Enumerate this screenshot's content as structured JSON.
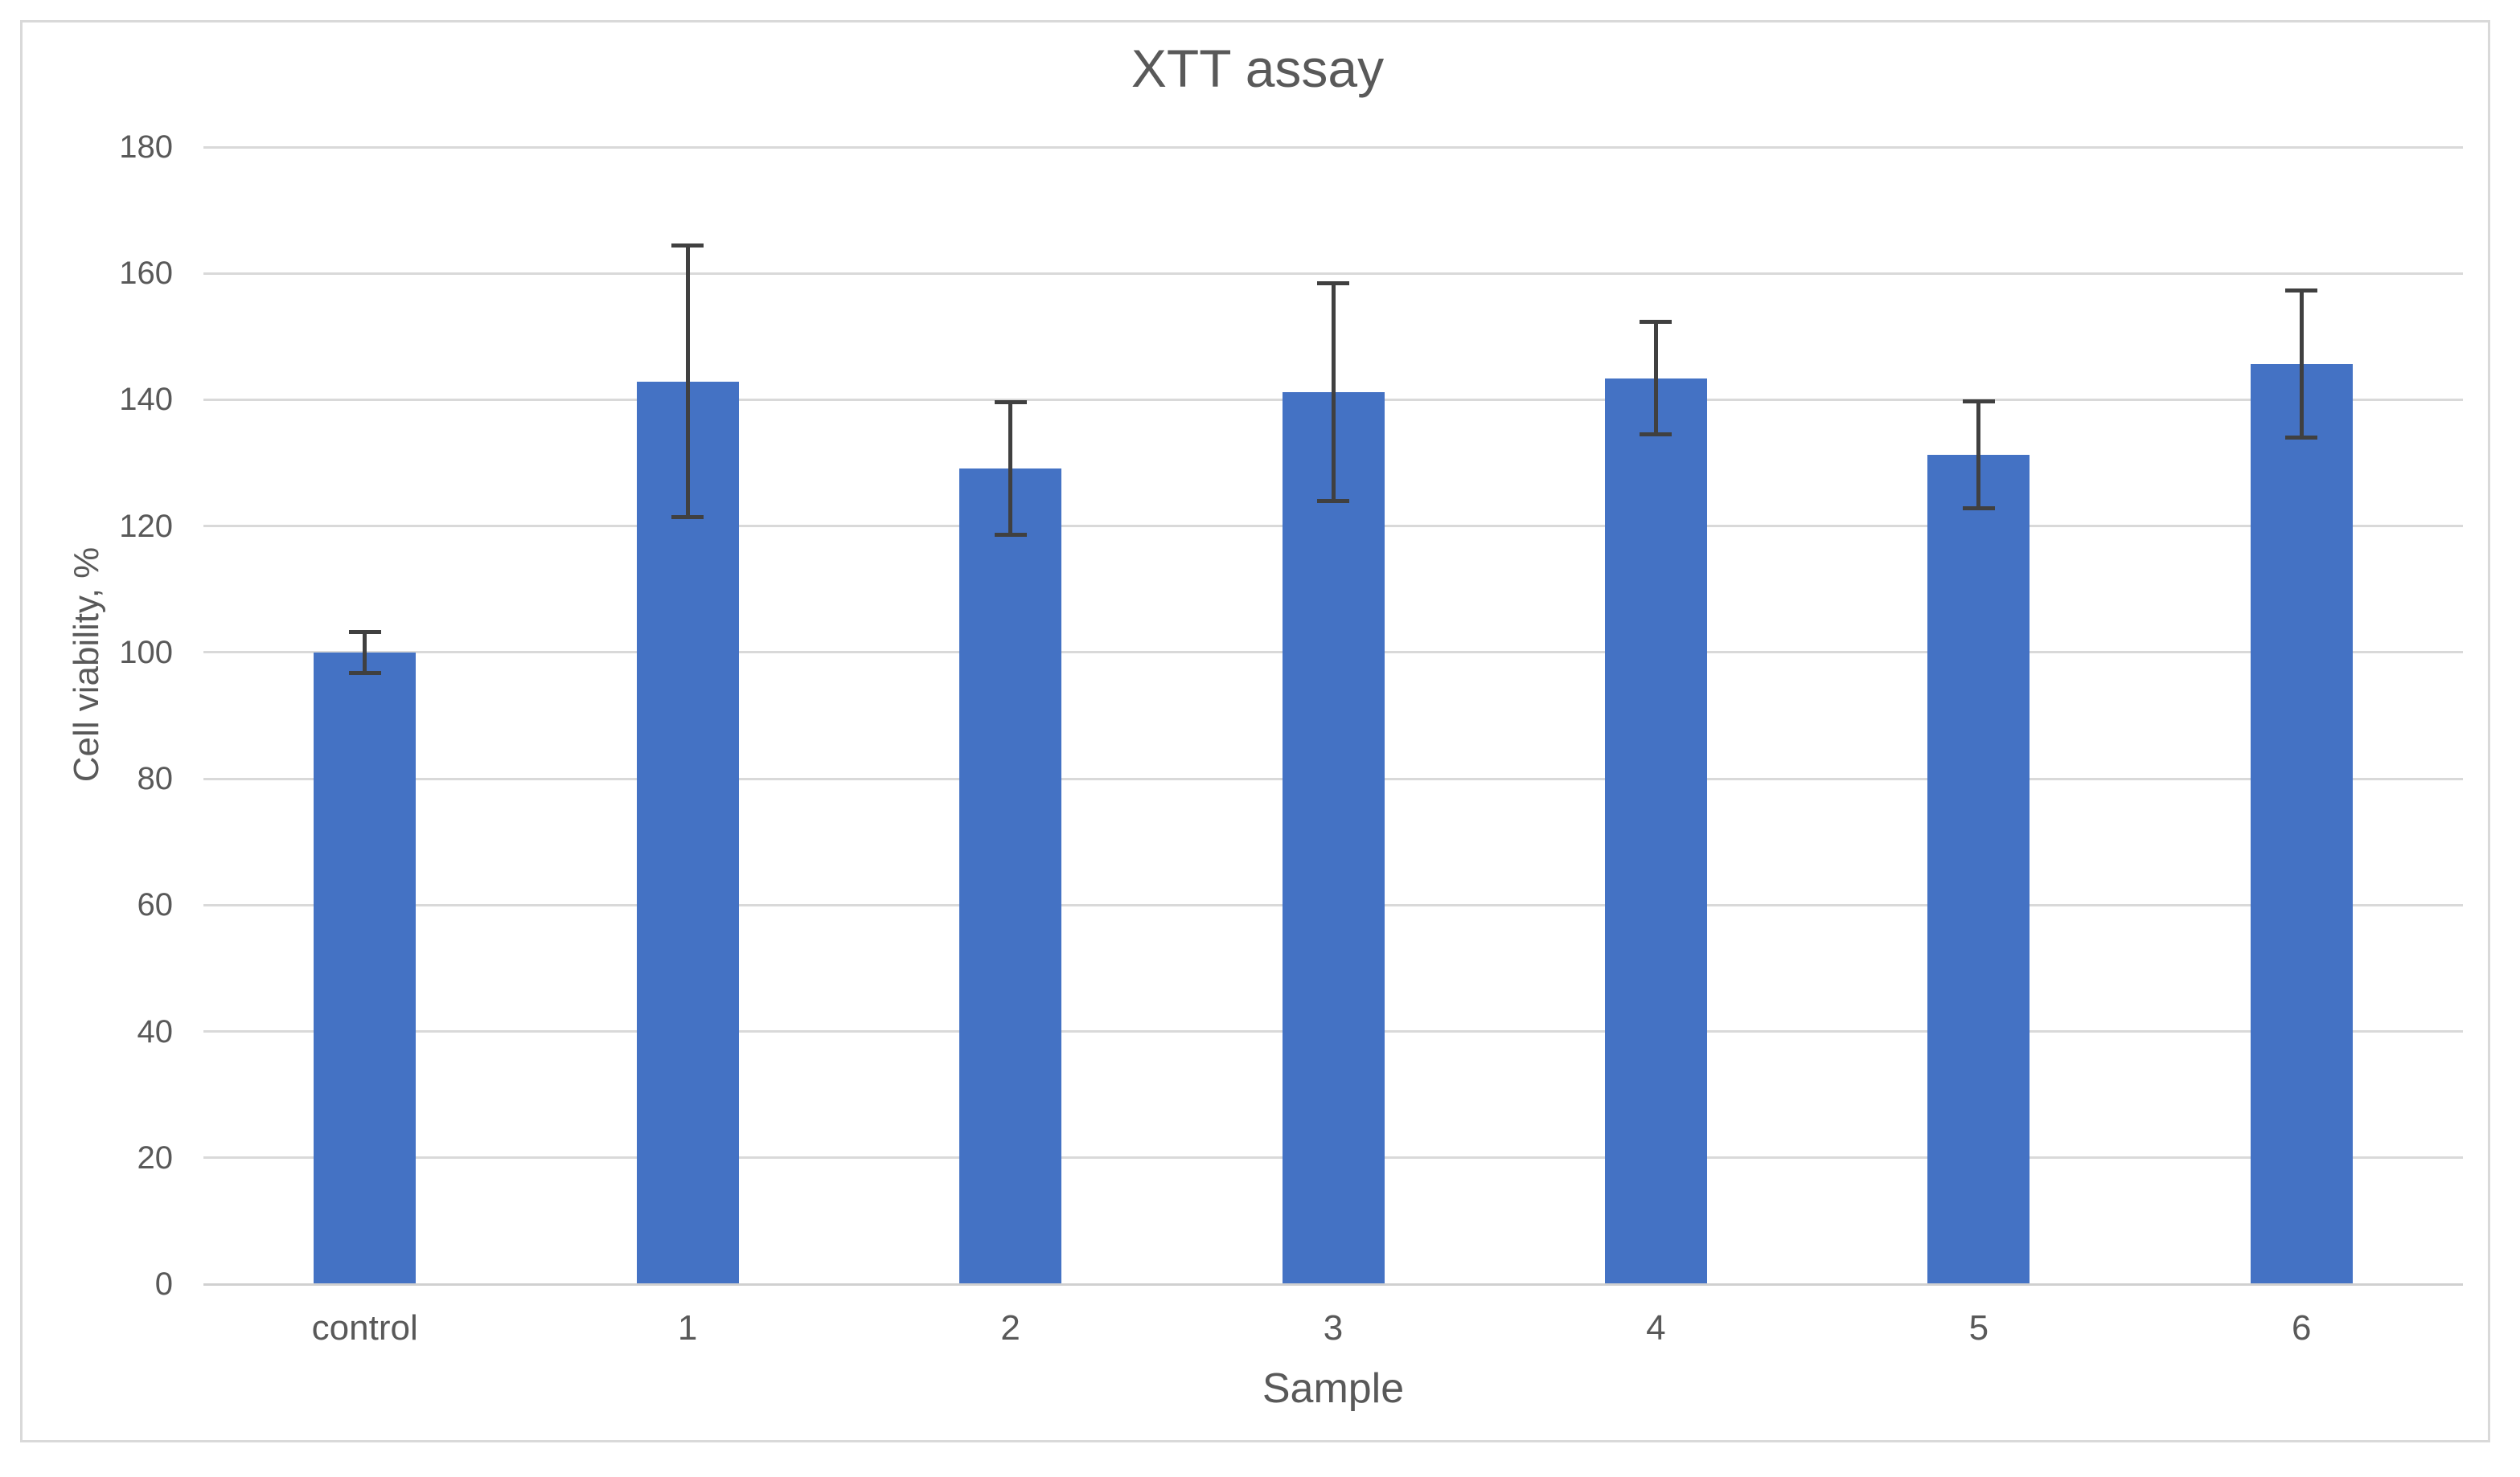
{
  "chart_data": {
    "type": "bar",
    "title": "XTT assay",
    "xlabel": "Sample",
    "ylabel": "Cell viability, %",
    "categories": [
      "control",
      "1",
      "2",
      "3",
      "4",
      "5",
      "6"
    ],
    "values": [
      100.0,
      142.9,
      129.1,
      141.2,
      143.4,
      131.3,
      145.6
    ],
    "error_bars": [
      3.3,
      21.6,
      10.6,
      17.3,
      9.0,
      8.5,
      11.7
    ],
    "series": [
      {
        "name": "Cell viability, %",
        "values": [
          100.0,
          142.9,
          129.1,
          141.2,
          143.4,
          131.3,
          145.6
        ],
        "errors": [
          3.3,
          21.6,
          10.6,
          17.3,
          9.0,
          8.5,
          11.7
        ]
      }
    ],
    "ylim": [
      0,
      180
    ],
    "ytick_step": 20,
    "yticks": [
      "0",
      "20",
      "40",
      "60",
      "80",
      "100",
      "120",
      "140",
      "160",
      "180"
    ],
    "grid": "horizontal",
    "legend_position": "none",
    "bar_color": "#4472C4",
    "error_bar_color": "#404040",
    "gridline_color": "#D9D9D9",
    "axis_line_color": "#D0D0D0",
    "text_color": "#595959",
    "title_color": "#595959",
    "frame_border_color": "#D9D9D9",
    "background_color": "#FFFFFF"
  }
}
